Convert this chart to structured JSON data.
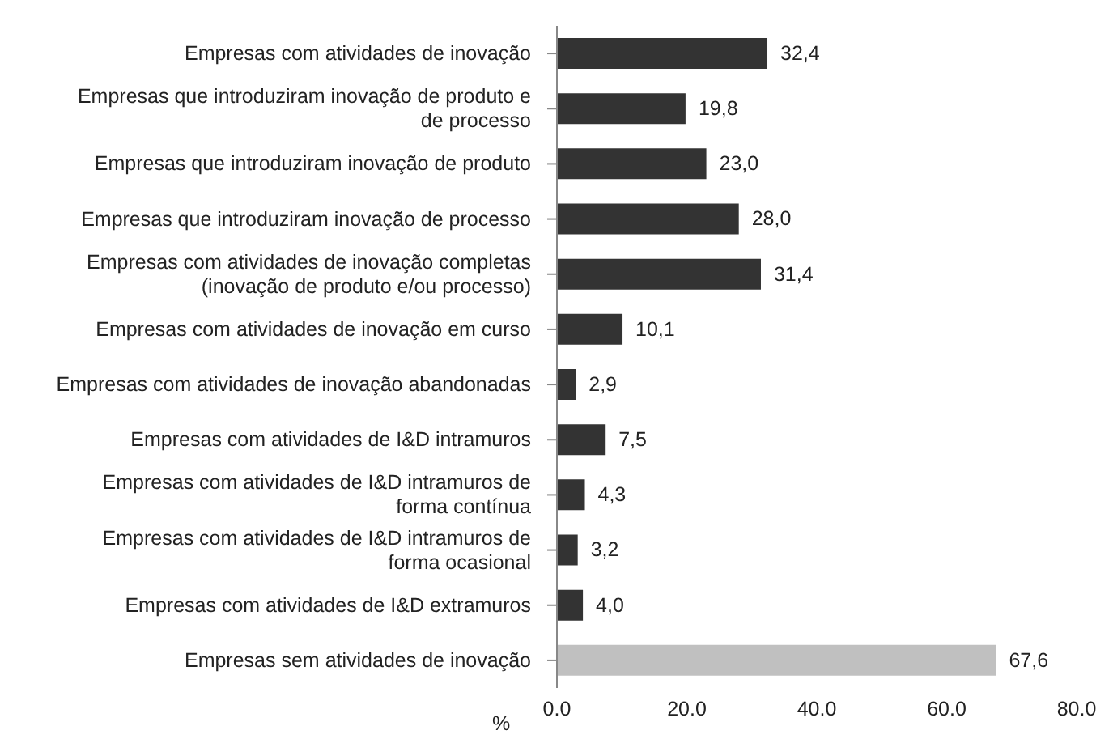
{
  "chart_data": {
    "type": "bar",
    "orientation": "horizontal",
    "categories": [
      "Empresas com atividades de inovação",
      "Empresas que introduziram inovação de produto e de processo",
      "Empresas que introduziram inovação de produto",
      "Empresas que introduziram inovação de processo",
      "Empresas com atividades de inovação completas (inovação de produto e/ou processo)",
      "Empresas com atividades de inovação em curso",
      "Empresas com atividades de inovação abandonadas",
      "Empresas com atividades de I&D intramuros",
      "Empresas com atividades de I&D intramuros de forma contínua",
      "Empresas com atividades de I&D intramuros de forma ocasional",
      "Empresas com atividades de I&D extramuros",
      "Empresas sem atividades de inovação"
    ],
    "values": [
      32.4,
      19.8,
      23.0,
      28.0,
      31.4,
      10.1,
      2.9,
      7.5,
      4.3,
      3.2,
      4.0,
      67.6
    ],
    "value_labels": [
      "32,4",
      "19,8",
      "23,0",
      "28,0",
      "31,4",
      "10,1",
      "2,9",
      "7,5",
      "4,3",
      "3,2",
      "4,0",
      "67,6"
    ],
    "colors": [
      "#333333",
      "#333333",
      "#333333",
      "#333333",
      "#333333",
      "#333333",
      "#333333",
      "#333333",
      "#333333",
      "#333333",
      "#333333",
      "#c0c0c0"
    ],
    "xlabel": "%",
    "xlim": [
      0,
      80
    ],
    "xticks": [
      {
        "value": 0,
        "label": "0.0"
      },
      {
        "value": 20,
        "label": "20.0"
      },
      {
        "value": 40,
        "label": "40.0"
      },
      {
        "value": 60,
        "label": "60.0"
      },
      {
        "value": 80,
        "label": "80.0"
      }
    ],
    "grid": false,
    "legend": false
  }
}
